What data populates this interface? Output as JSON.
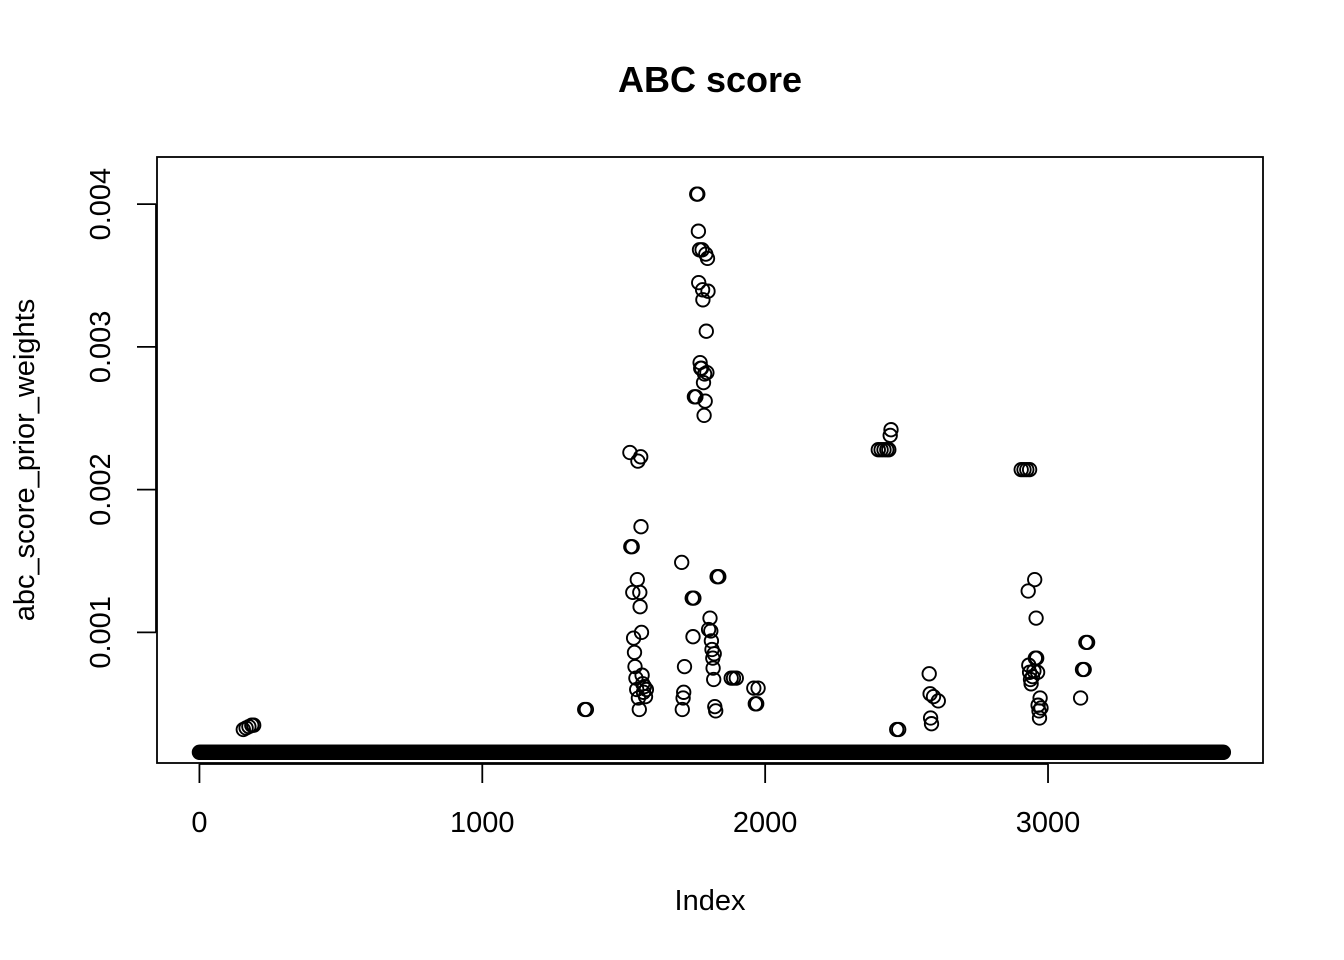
{
  "chart_data": {
    "type": "scatter",
    "title": "ABC score",
    "xlabel": "Index",
    "ylabel": "abc_score_prior_weights",
    "xlim": [
      -150,
      3760
    ],
    "ylim": [
      8.5e-05,
      0.00433
    ],
    "x_ticks": [
      0,
      1000,
      2000,
      3000
    ],
    "x_tick_labels": [
      "0",
      "1000",
      "2000",
      "3000"
    ],
    "y_ticks": [
      0.001,
      0.002,
      0.003,
      0.004
    ],
    "y_tick_labels": [
      "0.001",
      "0.002",
      "0.003",
      "0.004"
    ],
    "grid": false,
    "legend": "none",
    "baseline": {
      "y": 0.00016,
      "x_range": [
        0,
        3620
      ]
    },
    "points": [
      [
        155,
        0.00032
      ],
      [
        165,
        0.00033
      ],
      [
        175,
        0.00034
      ],
      [
        185,
        0.00035
      ],
      [
        192,
        0.00035
      ],
      [
        1362,
        0.00046
      ],
      [
        1368,
        0.00046
      ],
      [
        1522,
        0.00226
      ],
      [
        1525,
        0.0016
      ],
      [
        1530,
        0.0016
      ],
      [
        1532,
        0.00128
      ],
      [
        1535,
        0.00096
      ],
      [
        1538,
        0.00086
      ],
      [
        1540,
        0.00076
      ],
      [
        1543,
        0.00068
      ],
      [
        1546,
        0.0006
      ],
      [
        1548,
        0.00137
      ],
      [
        1550,
        0.0022
      ],
      [
        1552,
        0.00054
      ],
      [
        1555,
        0.00046
      ],
      [
        1557,
        0.00128
      ],
      [
        1558,
        0.00118
      ],
      [
        1560,
        0.00223
      ],
      [
        1561,
        0.00174
      ],
      [
        1563,
        0.001
      ],
      [
        1565,
        0.0007
      ],
      [
        1567,
        0.00064
      ],
      [
        1570,
        0.00058
      ],
      [
        1573,
        0.00062
      ],
      [
        1577,
        0.00055
      ],
      [
        1580,
        0.0006
      ],
      [
        1705,
        0.00149
      ],
      [
        1707,
        0.00046
      ],
      [
        1710,
        0.00054
      ],
      [
        1712,
        0.00058
      ],
      [
        1715,
        0.00076
      ],
      [
        1742,
        0.00124
      ],
      [
        1748,
        0.00124
      ],
      [
        1745,
        0.00097
      ],
      [
        1750,
        0.00265
      ],
      [
        1755,
        0.00265
      ],
      [
        1758,
        0.00407
      ],
      [
        1762,
        0.00407
      ],
      [
        1764,
        0.00381
      ],
      [
        1765,
        0.00345
      ],
      [
        1768,
        0.00368
      ],
      [
        1770,
        0.00289
      ],
      [
        1772,
        0.00285
      ],
      [
        1775,
        0.00285
      ],
      [
        1777,
        0.00368
      ],
      [
        1779,
        0.0034
      ],
      [
        1780,
        0.00333
      ],
      [
        1782,
        0.00275
      ],
      [
        1784,
        0.00252
      ],
      [
        1786,
        0.00281
      ],
      [
        1788,
        0.00262
      ],
      [
        1790,
        0.00365
      ],
      [
        1792,
        0.00311
      ],
      [
        1794,
        0.00282
      ],
      [
        1796,
        0.00362
      ],
      [
        1798,
        0.00339
      ],
      [
        1800,
        0.00102
      ],
      [
        1805,
        0.0011
      ],
      [
        1808,
        0.00101
      ],
      [
        1810,
        0.00094
      ],
      [
        1812,
        0.00088
      ],
      [
        1815,
        0.00082
      ],
      [
        1816,
        0.00075
      ],
      [
        1818,
        0.00067
      ],
      [
        1820,
        0.00085
      ],
      [
        1822,
        0.00048
      ],
      [
        1825,
        0.00045
      ],
      [
        1830,
        0.00139
      ],
      [
        1836,
        0.00139
      ],
      [
        1880,
        0.00068
      ],
      [
        1888,
        0.00068
      ],
      [
        1898,
        0.00068
      ],
      [
        1960,
        0.00061
      ],
      [
        1965,
        0.0005
      ],
      [
        1970,
        0.0005
      ],
      [
        1975,
        0.00061
      ],
      [
        2400,
        0.00228
      ],
      [
        2410,
        0.00228
      ],
      [
        2420,
        0.00228
      ],
      [
        2430,
        0.00228
      ],
      [
        2437,
        0.00228
      ],
      [
        2442,
        0.00238
      ],
      [
        2445,
        0.00242
      ],
      [
        2465,
        0.00032
      ],
      [
        2472,
        0.00032
      ],
      [
        2580,
        0.00071
      ],
      [
        2583,
        0.00057
      ],
      [
        2585,
        0.0004
      ],
      [
        2588,
        0.00036
      ],
      [
        2595,
        0.00055
      ],
      [
        2612,
        0.00052
      ],
      [
        2905,
        0.00214
      ],
      [
        2915,
        0.00214
      ],
      [
        2925,
        0.00214
      ],
      [
        2935,
        0.00214
      ],
      [
        2930,
        0.00129
      ],
      [
        2932,
        0.00077
      ],
      [
        2935,
        0.00072
      ],
      [
        2938,
        0.00067
      ],
      [
        2940,
        0.00064
      ],
      [
        2945,
        0.00069
      ],
      [
        2950,
        0.00073
      ],
      [
        2953,
        0.00137
      ],
      [
        2955,
        0.00082
      ],
      [
        2958,
        0.0011
      ],
      [
        2960,
        0.00082
      ],
      [
        2963,
        0.00072
      ],
      [
        2965,
        0.00049
      ],
      [
        2968,
        0.00045
      ],
      [
        2970,
        0.0004
      ],
      [
        2972,
        0.00054
      ],
      [
        2975,
        0.00047
      ],
      [
        3115,
        0.00054
      ],
      [
        3122,
        0.00074
      ],
      [
        3128,
        0.00074
      ],
      [
        3134,
        0.00093
      ],
      [
        3140,
        0.00093
      ]
    ]
  }
}
